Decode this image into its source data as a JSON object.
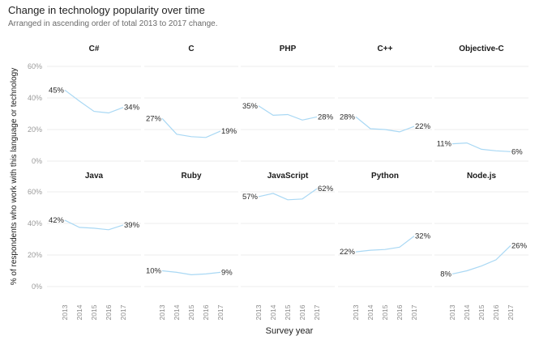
{
  "chart_data": {
    "type": "line",
    "title": "Change in technology popularity over time",
    "subtitle": "Arranged in ascending order of total 2013 to 2017 change.",
    "xlabel": "Survey year",
    "ylabel": "% of respondents who work with this language or technology",
    "x": [
      "2013",
      "2014",
      "2015",
      "2016",
      "2017"
    ],
    "ylim": [
      0,
      60
    ],
    "yticks": [
      "0%",
      "20%",
      "40%",
      "60%"
    ],
    "grid": true,
    "series": [
      {
        "name": "C#",
        "values": [
          45,
          38,
          31.5,
          30.5,
          34
        ],
        "start_label": "45%",
        "end_label": "34%"
      },
      {
        "name": "C",
        "values": [
          27,
          17,
          15.5,
          15,
          19
        ],
        "start_label": "27%",
        "end_label": "19%"
      },
      {
        "name": "PHP",
        "values": [
          35,
          29,
          29.5,
          26,
          28
        ],
        "start_label": "35%",
        "end_label": "28%"
      },
      {
        "name": "C++",
        "values": [
          28,
          20.5,
          20,
          18.5,
          22
        ],
        "start_label": "28%",
        "end_label": "22%"
      },
      {
        "name": "Objective-C",
        "values": [
          11,
          11.5,
          7.5,
          6.5,
          6
        ],
        "start_label": "11%",
        "end_label": "6%"
      },
      {
        "name": "Java",
        "values": [
          42,
          37.5,
          37,
          36,
          39
        ],
        "start_label": "42%",
        "end_label": "39%"
      },
      {
        "name": "Ruby",
        "values": [
          10,
          9,
          7.5,
          8,
          9
        ],
        "start_label": "10%",
        "end_label": "9%"
      },
      {
        "name": "JavaScript",
        "values": [
          57,
          59,
          55,
          55.5,
          62
        ],
        "start_label": "57%",
        "end_label": "62%"
      },
      {
        "name": "Python",
        "values": [
          22,
          23,
          23.5,
          25,
          32
        ],
        "start_label": "22%",
        "end_label": "32%"
      },
      {
        "name": "Node.js",
        "values": [
          8,
          10,
          13,
          17,
          26
        ],
        "start_label": "8%",
        "end_label": "26%"
      }
    ],
    "colors": {
      "line": "#a9d8f4",
      "grid": "#ececec"
    }
  }
}
